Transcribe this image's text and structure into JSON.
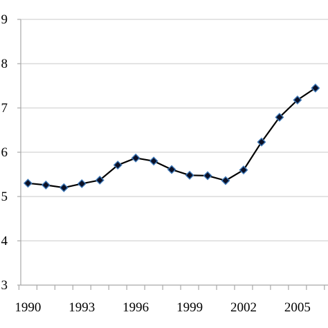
{
  "chart_data": {
    "type": "line",
    "title": "",
    "xlabel": "",
    "ylabel": "",
    "x": [
      1990,
      1991,
      1992,
      1993,
      1994,
      1995,
      1996,
      1997,
      1998,
      1999,
      2000,
      2001,
      2002,
      2003,
      2004,
      2005,
      2006
    ],
    "series": [
      {
        "values": [
          5.3,
          5.26,
          5.2,
          5.29,
          5.37,
          5.71,
          5.87,
          5.8,
          5.61,
          5.48,
          5.47,
          5.36,
          5.6,
          6.23,
          6.79,
          7.18,
          7.45
        ]
      }
    ],
    "xlim": [
      1989.6,
      2006.7
    ],
    "ylim": [
      3,
      9
    ],
    "x_ticks": [
      "1990",
      "1993",
      "1996",
      "1999",
      "2002",
      "2005"
    ],
    "y_ticks": [
      "3",
      "4",
      "5",
      "6",
      "7",
      "8",
      "9"
    ],
    "grid": "horizontal",
    "legend": "none",
    "colors": {
      "line": "#000000",
      "marker_fill": "#0b1026",
      "marker_edge": "#3d78b8",
      "grid": "#c8c8c8",
      "axis": "#a8a8a8"
    }
  }
}
